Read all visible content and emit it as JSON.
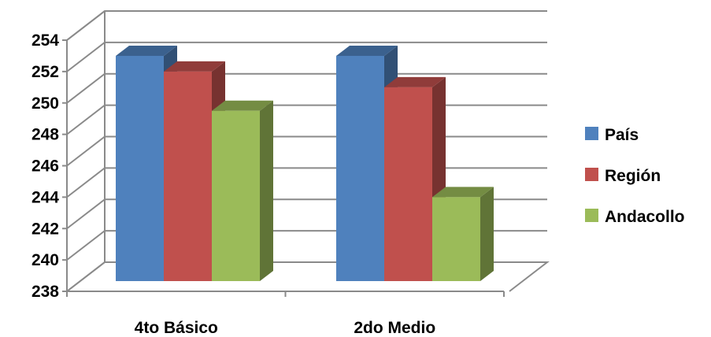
{
  "chart_data": {
    "type": "bar",
    "categories": [
      "4to Básico",
      "2do Medio"
    ],
    "series": [
      {
        "name": "País",
        "values": [
          253,
          253
        ],
        "color": "#4F81BD"
      },
      {
        "name": "Región",
        "values": [
          252,
          251
        ],
        "color": "#C0504D"
      },
      {
        "name": "Andacollo",
        "values": [
          249.5,
          244
        ],
        "color": "#9BBB59"
      }
    ],
    "ylim": [
      238,
      254
    ],
    "yticks": [
      "238",
      "240",
      "242",
      "244",
      "246",
      "248",
      "250",
      "252",
      "254"
    ],
    "grid": true,
    "legend_position": "right",
    "style": "3d-clustered-column"
  }
}
